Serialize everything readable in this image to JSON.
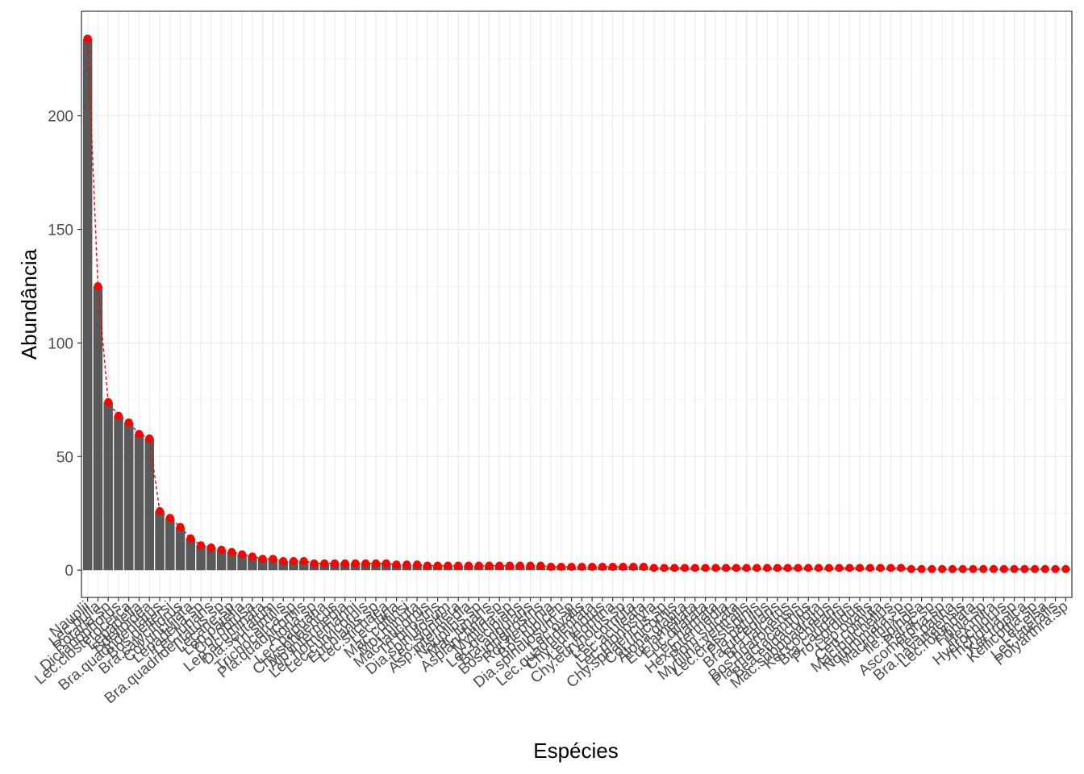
{
  "colors": {
    "bar": "#595959",
    "line_points": "#ff0000",
    "grid_major": "#ebebeb",
    "grid_minor": "#f3f3f3",
    "panel_border": "#333333",
    "tick_text": "#4d4d4d",
    "axis_title": "#000000"
  },
  "chart_data": {
    "type": "bar",
    "title": "",
    "xlabel": "Espécies",
    "ylabel": "Abundância",
    "ylim": [
      -12,
      246
    ],
    "yticks": [
      0,
      50,
      100,
      150,
      200
    ],
    "grid": true,
    "legend": "none",
    "overlay": "red points joined by a dashed red line at each bar top",
    "categories": [
      "Nauplii",
      "Lec.bulla",
      "Rotaria.sp",
      "Dicranophorus",
      "Lec.closterocerca",
      "Lepadella",
      "Bdelloidea",
      "Bra.quadridentatus",
      "Bos.deitersi",
      "Bra.calyciflorus",
      "Col.uncinata",
      "Lepadella.sp",
      "Lec.lunaris",
      "Bra.quadridentatus.sp",
      "Lecane.sp",
      "Lep.patella",
      "Col.obtusa",
      "Lep.acuminata",
      "Dia.scutatum",
      "Tri.similis",
      "Trichocerca.sp",
      "Pla.quadricornis",
      "Alona.sp",
      "Lec.papuana",
      "Chy.sphaericus",
      "Alb.intermedia",
      "Lec.hornemanni",
      "Lec.curvicornis",
      "Euchlanis.sp",
      "Lec.stichaea",
      "Lec.luna",
      "Mac.collinsi",
      "Moi.minuta",
      "Mac.laticornis",
      "Tri.birostris",
      "Dia.spinulosum",
      "Lec.signifera",
      "Asp.intermedia",
      "Nauplius.sp",
      "Mac.lunaris",
      "Asplanchna.sp",
      "Mytilina.sp",
      "Lec.decipiens",
      "Bra.angularis",
      "Bos.longirostris",
      "Rot.neptunia",
      "Bos.tubicen",
      "Dia.spinulosum.sp",
      "Lec.ovalis",
      "Lec.quadridentata",
      "Chy.eurynotus",
      "Lec.leontina",
      "Chy.eurynotus.sp",
      "Lec.cornuta",
      "Lec.aculeata",
      "Lec.monostyla",
      "Chy.sphaericus.sp",
      "Col.unicornis",
      "Alona.glabra",
      "Eur.lamellata",
      "Euc.dilatata",
      "Lec.hamata",
      "Hex.intermedia",
      "Pom.sulcata",
      "Mytilina.ventralis",
      "Lec.crassispinis",
      "Pla.patulus",
      "Bra.urceolaris",
      "Bra.falcatus",
      "Bos.huaronensis",
      "Pla.macracanthus",
      "Bea.eudactylota",
      "Mac.subquadratus",
      "Ker.cochlearis",
      "Bra.caudatus",
      "Pro.sordidus",
      "Lep.ovalis",
      "Cep.cornuta",
      "Mac.pulchellus",
      "Notommata.sp",
      "Macrothrix.sp",
      "Ile.spinosa",
      "Parac.sp",
      "Ascomorpha.sp",
      "Tes.patina",
      "Bra.havanaensis",
      "Lec.rotundata",
      "Filinia.sp",
      "Hex.mira",
      "Hydrochlorus",
      "Trichotria.sp",
      "Ker.tropica",
      "Kellicottia.sp",
      "Lec.elsa",
      "Lec.lateralis",
      "Polyarthra.sp"
    ],
    "values": [
      234,
      125,
      74,
      68,
      65,
      60,
      58,
      26,
      23,
      19,
      14,
      11,
      10,
      9,
      8,
      7,
      6,
      5,
      5,
      4,
      4,
      4,
      3,
      3,
      3,
      3,
      3,
      3,
      3,
      3,
      2.5,
      2.5,
      2.5,
      2,
      2,
      2,
      2,
      2,
      2,
      2,
      2,
      2,
      2,
      2,
      2,
      1.5,
      1.5,
      1.5,
      1.5,
      1.5,
      1.5,
      1.5,
      1.5,
      1.5,
      1.5,
      1,
      1,
      1,
      1,
      1,
      1,
      1,
      1,
      1,
      1,
      1,
      1,
      1,
      1,
      1,
      1,
      1,
      1,
      1,
      1,
      1,
      1,
      1,
      1,
      1,
      0.5,
      0.5,
      0.5,
      0.5,
      0.5,
      0.5,
      0.5,
      0.5,
      0.5,
      0.5,
      0.5,
      0.5,
      0.5,
      0.5,
      0.5,
      0.5
    ]
  }
}
